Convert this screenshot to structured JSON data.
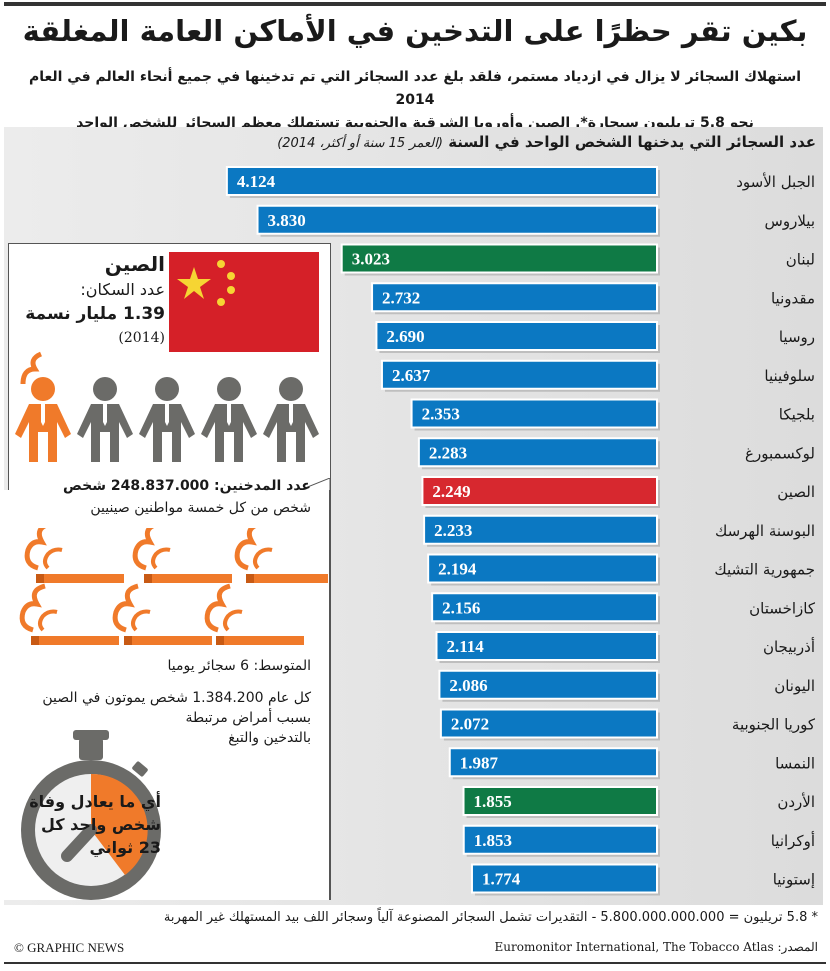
{
  "title": "بكين تقر حظرًا على التدخين في الأماكن العامة المغلقة",
  "subtitle": [
    "استهلاك السجائر لا يزال في ازدياد مستمر، فلقد بلغ عدد السجائر التي تم تدخينها في جميع أنحاء العالم في العام 2014",
    "نحو 5.8 تريليون سيجارة*. الصين وأوروبا الشرقية والجنوبية تستهلك معظم السجائر للشخص الواحد"
  ],
  "colors": {
    "default": "#0b78c2",
    "arab": "#0f7a45",
    "china": "#d7282f",
    "accent": "#f07a2a",
    "grey": "#6b6b68"
  },
  "chart_data": {
    "type": "bar",
    "orientation": "horizontal",
    "title": "عدد السجائر التي يدخنها الشخص الواحد في السنة",
    "title_note": "(العمر 15 سنة أو أكثر، 2014)",
    "categories": [
      "الجبل الأسود",
      "بيلاروس",
      "لبنان",
      "مقدونيا",
      "روسيا",
      "سلوفينيا",
      "بلجيكا",
      "لوكسمبورغ",
      "الصين",
      "البوسنة الهرسك",
      "جمهورية التشيك",
      "كازاخستان",
      "أذربيجان",
      "اليونان",
      "كوريا الجنوبية",
      "النمسا",
      "الأردن",
      "أوكرانيا",
      "إستونيا"
    ],
    "values": [
      4124,
      3830,
      3023,
      2732,
      2690,
      2637,
      2353,
      2283,
      2249,
      2233,
      2194,
      2156,
      2114,
      2086,
      2072,
      1987,
      1855,
      1853,
      1774
    ],
    "labels": [
      "4.124",
      "3.830",
      "3.023",
      "2.732",
      "2.690",
      "2.637",
      "2.353",
      "2.283",
      "2.249",
      "2.233",
      "2.194",
      "2.156",
      "2.114",
      "2.086",
      "2.072",
      "1.987",
      "1.855",
      "1.853",
      "1.774"
    ],
    "highlight": {
      "لبنان": "arab",
      "الأردن": "arab",
      "الصين": "china"
    },
    "grid": false
  },
  "china": {
    "name": "الصين",
    "pop_label": "عدد السكان:",
    "pop_value": "1.39 مليار نسمة",
    "pop_year": "(2014)",
    "smokers": "عدد المدخنين: 248.837.000 شخص",
    "ratio": "شخص من كل خمسة مواطنين صينيين",
    "average": "المتوسط: 6 سجائر يوميا",
    "deaths": "كل عام 1.384.200 شخص يموتون في الصين",
    "deaths2": "بسبب أمراض مرتبطة",
    "deaths3": "بالتدخين والتبغ",
    "every": [
      "أي ما يعادل وفاة",
      "شخص واحد كل",
      "23 ثواني"
    ]
  },
  "footnote": "* 5.8 تريليون = 5.800.000.000.000 - التقديرات تشمل السجائر المصنوعة آلياً وسجائر اللف بيد المستهلك غير المهربة",
  "source": "المصدر: Euromonitor International, The Tobacco Atlas",
  "credit": "© GRAPHIC NEWS"
}
